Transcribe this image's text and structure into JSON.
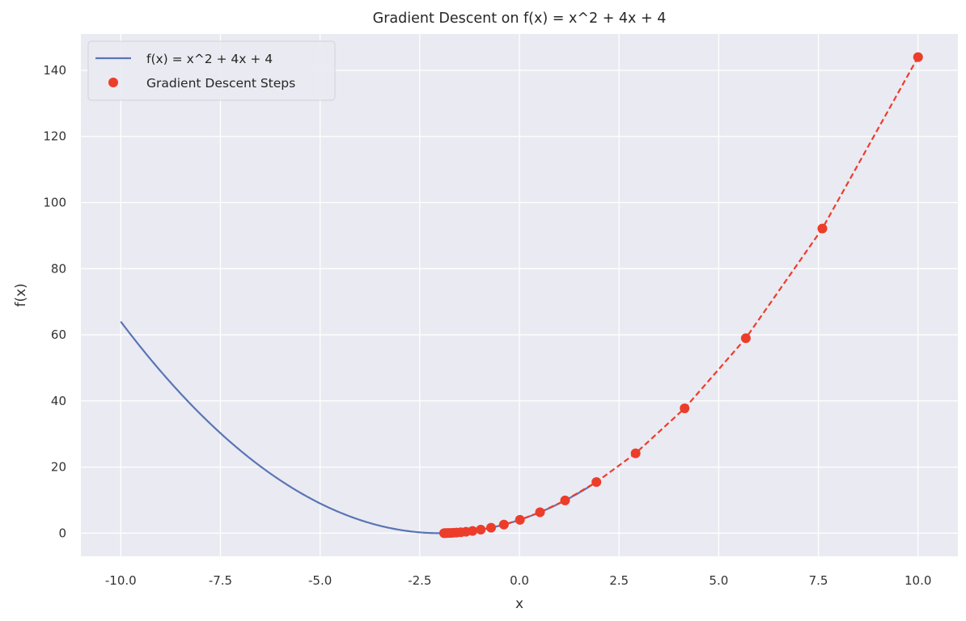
{
  "chart_data": {
    "type": "line",
    "title": "Gradient Descent on f(x) = x^2 + 4x + 4",
    "xlabel": "x",
    "ylabel": "f(x)",
    "xlim": [
      -11.0,
      11.0
    ],
    "ylim": [
      -7.0,
      151.0
    ],
    "x_ticks": [
      -10.0,
      -7.5,
      -5.0,
      -2.5,
      0.0,
      2.5,
      5.0,
      7.5,
      10.0
    ],
    "x_tick_labels": [
      "-10.0",
      "-7.5",
      "-5.0",
      "-2.5",
      "0.0",
      "2.5",
      "5.0",
      "7.5",
      "10.0"
    ],
    "y_ticks": [
      0,
      20,
      40,
      60,
      80,
      100,
      120,
      140
    ],
    "y_tick_labels": [
      "0",
      "20",
      "40",
      "60",
      "80",
      "100",
      "120",
      "140"
    ],
    "grid": true,
    "legend_position": "top-left",
    "series": [
      {
        "name": "f(x) = x^2 + 4x + 4",
        "kind": "line",
        "color": "#5a75b5",
        "function": "x^2 + 4x + 4",
        "x_range": [
          -10.0,
          2.0
        ]
      },
      {
        "name": "Gradient Descent Steps",
        "kind": "scatter",
        "color": "#ec3d2a",
        "connector": "dashed",
        "x": [
          10.0,
          7.6,
          5.68,
          4.144,
          2.915,
          1.932,
          1.146,
          0.517,
          0.013,
          -0.389,
          -0.711,
          -0.969,
          -1.175,
          -1.34,
          -1.472,
          -1.578,
          -1.662,
          -1.73,
          -1.784,
          -1.827,
          -1.862,
          -1.889
        ],
        "y": [
          144.0,
          92.16,
          58.98,
          37.75,
          24.16,
          15.46,
          9.9,
          6.33,
          4.05,
          2.59,
          1.66,
          1.06,
          0.68,
          0.44,
          0.28,
          0.18,
          0.11,
          0.07,
          0.05,
          0.03,
          0.02,
          0.01
        ]
      }
    ]
  }
}
